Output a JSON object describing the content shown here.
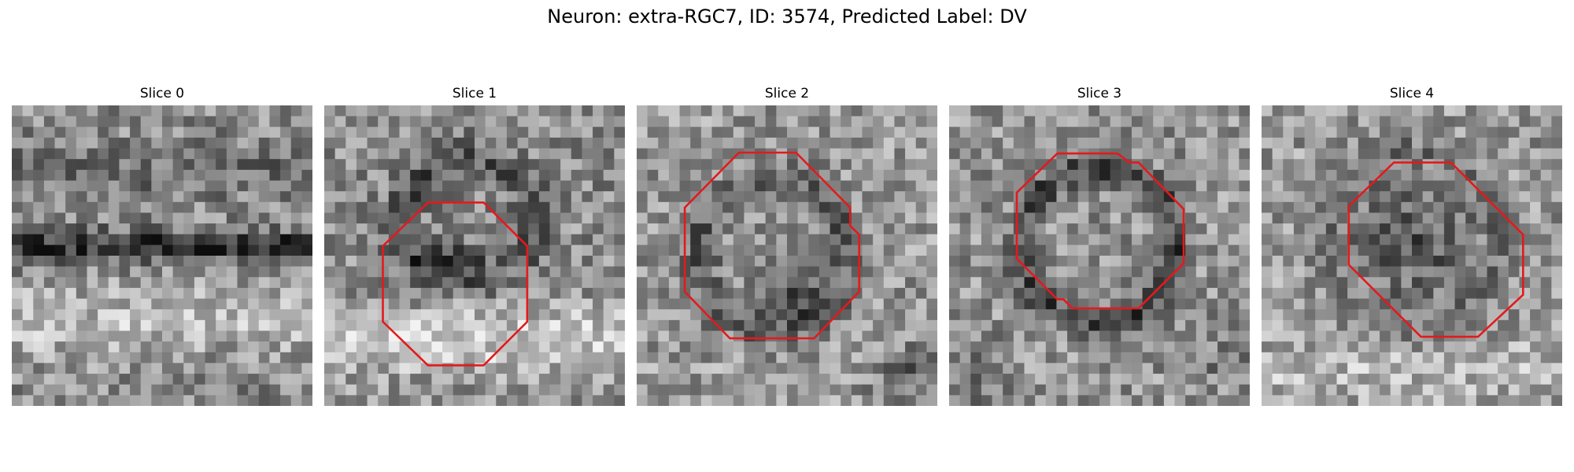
{
  "figure": {
    "title": "Neuron: extra-RGC7, ID: 3574, Predicted Label: DV"
  },
  "panels": [
    {
      "title": "Slice 0",
      "has_contour": false
    },
    {
      "title": "Slice 1",
      "has_contour": true
    },
    {
      "title": "Slice 2",
      "has_contour": true
    },
    {
      "title": "Slice 3",
      "has_contour": true
    },
    {
      "title": "Slice 4",
      "has_contour": true
    }
  ],
  "colors": {
    "contour": "#e31a1c"
  }
}
